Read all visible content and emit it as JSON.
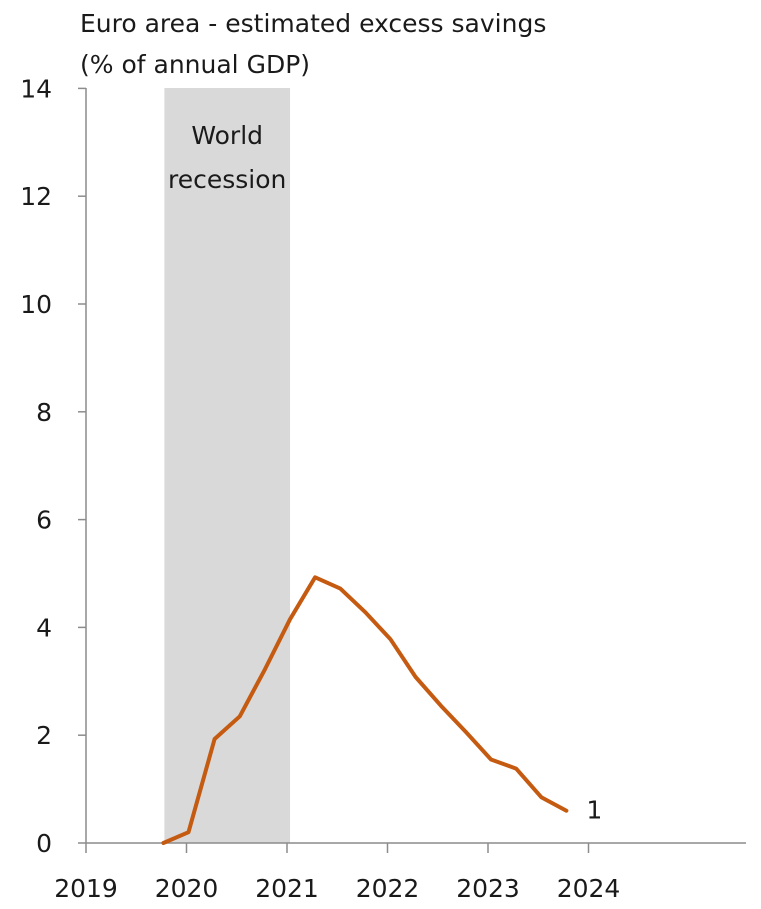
{
  "chart_data": {
    "type": "line",
    "title_lines": [
      "Euro area - estimated excess savings",
      "(% of annual GDP)"
    ],
    "ylim": [
      0,
      14
    ],
    "y_ticks": [
      0,
      2,
      4,
      6,
      8,
      10,
      12,
      14
    ],
    "y_tick_labels": [
      "0",
      "2",
      "4",
      "6",
      "8",
      "10",
      "12",
      "14"
    ],
    "xlim": [
      2019,
      2024.55
    ],
    "x_ticks": [
      2019,
      2020,
      2021,
      2022,
      2023,
      2024
    ],
    "x_tick_labels": [
      "2019",
      "2020",
      "2021",
      "2022",
      "2023",
      "2024"
    ],
    "grid": false,
    "recession_band": {
      "x_start": 2019.78,
      "x_end": 2021.03,
      "label_lines": [
        "World",
        "recession"
      ],
      "color": "#d9d9d9"
    },
    "series": [
      {
        "color": "#c55a11",
        "end_label": "1",
        "points": [
          {
            "x": 2019.77,
            "y": 0.0
          },
          {
            "x": 2020.02,
            "y": 0.2
          },
          {
            "x": 2020.28,
            "y": 1.93
          },
          {
            "x": 2020.53,
            "y": 2.35
          },
          {
            "x": 2020.78,
            "y": 3.22
          },
          {
            "x": 2021.03,
            "y": 4.15
          },
          {
            "x": 2021.28,
            "y": 4.93
          },
          {
            "x": 2021.53,
            "y": 4.72
          },
          {
            "x": 2021.78,
            "y": 4.28
          },
          {
            "x": 2022.03,
            "y": 3.78
          },
          {
            "x": 2022.28,
            "y": 3.08
          },
          {
            "x": 2022.53,
            "y": 2.55
          },
          {
            "x": 2022.78,
            "y": 2.06
          },
          {
            "x": 2023.03,
            "y": 1.55
          },
          {
            "x": 2023.28,
            "y": 1.38
          },
          {
            "x": 2023.53,
            "y": 0.85
          },
          {
            "x": 2023.78,
            "y": 0.6
          }
        ]
      }
    ]
  }
}
